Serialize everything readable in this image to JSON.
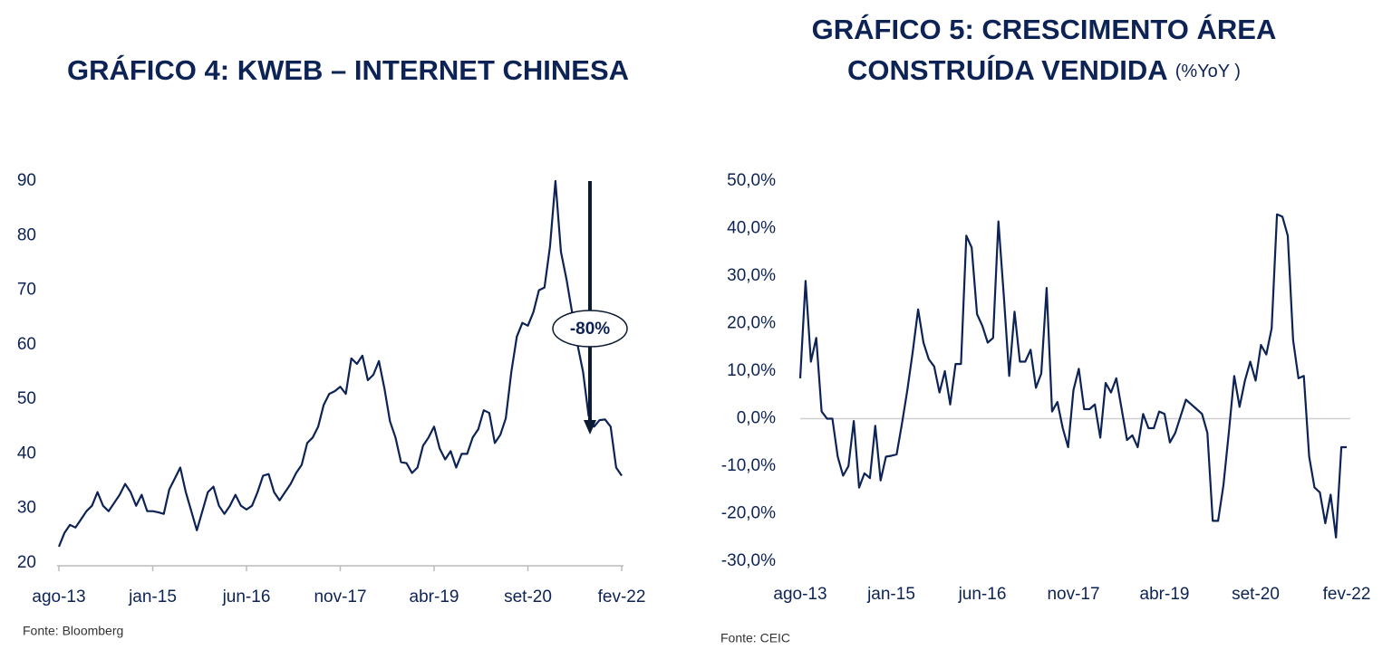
{
  "chart_data": [
    {
      "type": "line",
      "title": "GRÁFICO 4: KWEB – INTERNET CHINESA",
      "source": "Fonte:  Bloomberg",
      "annotation": "-80%",
      "color": "#0d2355",
      "x_axis_line": true,
      "categories": [
        "ago-13",
        null,
        null,
        null,
        null,
        null,
        null,
        null,
        null,
        null,
        null,
        null,
        null,
        null,
        null,
        null,
        null,
        "jan-15",
        null,
        null,
        null,
        null,
        null,
        null,
        null,
        null,
        null,
        null,
        null,
        null,
        null,
        null,
        null,
        null,
        "jun-16",
        null,
        null,
        null,
        null,
        null,
        null,
        null,
        null,
        null,
        null,
        null,
        null,
        null,
        null,
        null,
        null,
        "nov-17",
        null,
        null,
        null,
        null,
        null,
        null,
        null,
        null,
        null,
        null,
        null,
        null,
        null,
        null,
        null,
        null,
        "abr-19",
        null,
        null,
        null,
        null,
        null,
        null,
        null,
        null,
        null,
        null,
        null,
        null,
        null,
        null,
        null,
        null,
        "set-20",
        null,
        null,
        null,
        null,
        null,
        null,
        null,
        null,
        null,
        null,
        null,
        null,
        null,
        null,
        null,
        null,
        "fev-22"
      ],
      "values": [
        23,
        25.5,
        27,
        26.5,
        28,
        29.5,
        30.5,
        33,
        30.5,
        29.5,
        31,
        32.5,
        34.5,
        33,
        30.5,
        32.5,
        29.5,
        29.5,
        29.3,
        29,
        33.5,
        35.5,
        37.5,
        33,
        29.5,
        26,
        29.5,
        33,
        34,
        30.5,
        29,
        30.5,
        32.5,
        30.5,
        29.8,
        30.5,
        33,
        36,
        36.3,
        33,
        31.5,
        33,
        34.5,
        36.5,
        38,
        42,
        43,
        45,
        49,
        51,
        51.5,
        52.3,
        51,
        57.5,
        56.5,
        58,
        53.5,
        54.5,
        57,
        52,
        46,
        43,
        38.5,
        38.3,
        36.5,
        37.5,
        41.5,
        43,
        45,
        41,
        39,
        40.5,
        37.5,
        40,
        40,
        43,
        44.5,
        48,
        47.5,
        42,
        43.5,
        46.5,
        55,
        61.5,
        64,
        63.5,
        66,
        70,
        70.5,
        78,
        90,
        77,
        72,
        66,
        60,
        55,
        47,
        45,
        46.2,
        46.3,
        45,
        37.5,
        36
      ],
      "ylim": [
        20,
        90
      ],
      "yticks": [
        20,
        30,
        40,
        50,
        60,
        70,
        80,
        90
      ]
    },
    {
      "type": "line",
      "title": [
        "GRÁFICO 5: CRESCIMENTO ÁREA",
        "CONSTRUÍDA VENDIDA"
      ],
      "subtitle": "(%YoY )",
      "source": "Fonte:  CEIC",
      "color": "#0d2355",
      "zero_line": true,
      "categories": [
        "ago-13",
        null,
        null,
        null,
        null,
        null,
        null,
        null,
        null,
        null,
        null,
        null,
        null,
        null,
        null,
        null,
        null,
        "jan-15",
        null,
        null,
        null,
        null,
        null,
        null,
        null,
        null,
        null,
        null,
        null,
        null,
        null,
        null,
        null,
        null,
        "jun-16",
        null,
        null,
        null,
        null,
        null,
        null,
        null,
        null,
        null,
        null,
        null,
        null,
        null,
        null,
        null,
        null,
        "nov-17",
        null,
        null,
        null,
        null,
        null,
        null,
        null,
        null,
        null,
        null,
        null,
        null,
        null,
        null,
        null,
        null,
        "abr-19",
        null,
        null,
        null,
        null,
        null,
        null,
        null,
        null,
        null,
        null,
        null,
        null,
        null,
        null,
        null,
        null,
        "set-20",
        null,
        null,
        null,
        null,
        null,
        null,
        null,
        null,
        null,
        null,
        null,
        null,
        null,
        null,
        null,
        null,
        "fev-22"
      ],
      "values": [
        8.5,
        29,
        12,
        17,
        1.5,
        0,
        0,
        -8,
        -12,
        -10,
        -0.5,
        -14.5,
        -11.5,
        -12.5,
        -1.5,
        -13,
        -8,
        -7.8,
        -7.5,
        -1,
        6,
        14,
        23,
        16,
        12.5,
        11,
        5.5,
        10,
        3,
        11.5,
        11.5,
        38.5,
        36,
        22,
        19.5,
        16,
        17,
        41.5,
        26,
        9,
        22.5,
        12,
        12,
        14.5,
        6.5,
        9.5,
        27.5,
        1.5,
        3.5,
        -2,
        -6,
        6,
        10.5,
        2,
        2,
        3,
        -4,
        7.5,
        5.5,
        8.5,
        2,
        -4.5,
        -3.5,
        -6,
        1,
        -2,
        -2,
        1.5,
        1,
        -5,
        -3,
        0.5,
        4,
        3,
        2,
        1,
        -3,
        -21.5,
        -21.5,
        -14,
        -3,
        9,
        2.5,
        8,
        12,
        8,
        15.5,
        13.5,
        19,
        43,
        42.5,
        38.5,
        16.5,
        8.5,
        9,
        -8,
        -14.5,
        -15.5,
        -22,
        -16,
        -25,
        -6,
        -6
      ],
      "ylim": [
        -30,
        50
      ],
      "yticks": [
        {
          "value": -30,
          "label": "-30,0%"
        },
        {
          "value": -20,
          "label": "-20,0%"
        },
        {
          "value": -10,
          "label": "-10,0%"
        },
        {
          "value": 0,
          "label": "0,0%"
        },
        {
          "value": 10,
          "label": "10,0%"
        },
        {
          "value": 20,
          "label": "20,0%"
        },
        {
          "value": 30,
          "label": "30,0%"
        },
        {
          "value": 40,
          "label": "40,0%"
        },
        {
          "value": 50,
          "label": "50,0%"
        }
      ]
    }
  ]
}
